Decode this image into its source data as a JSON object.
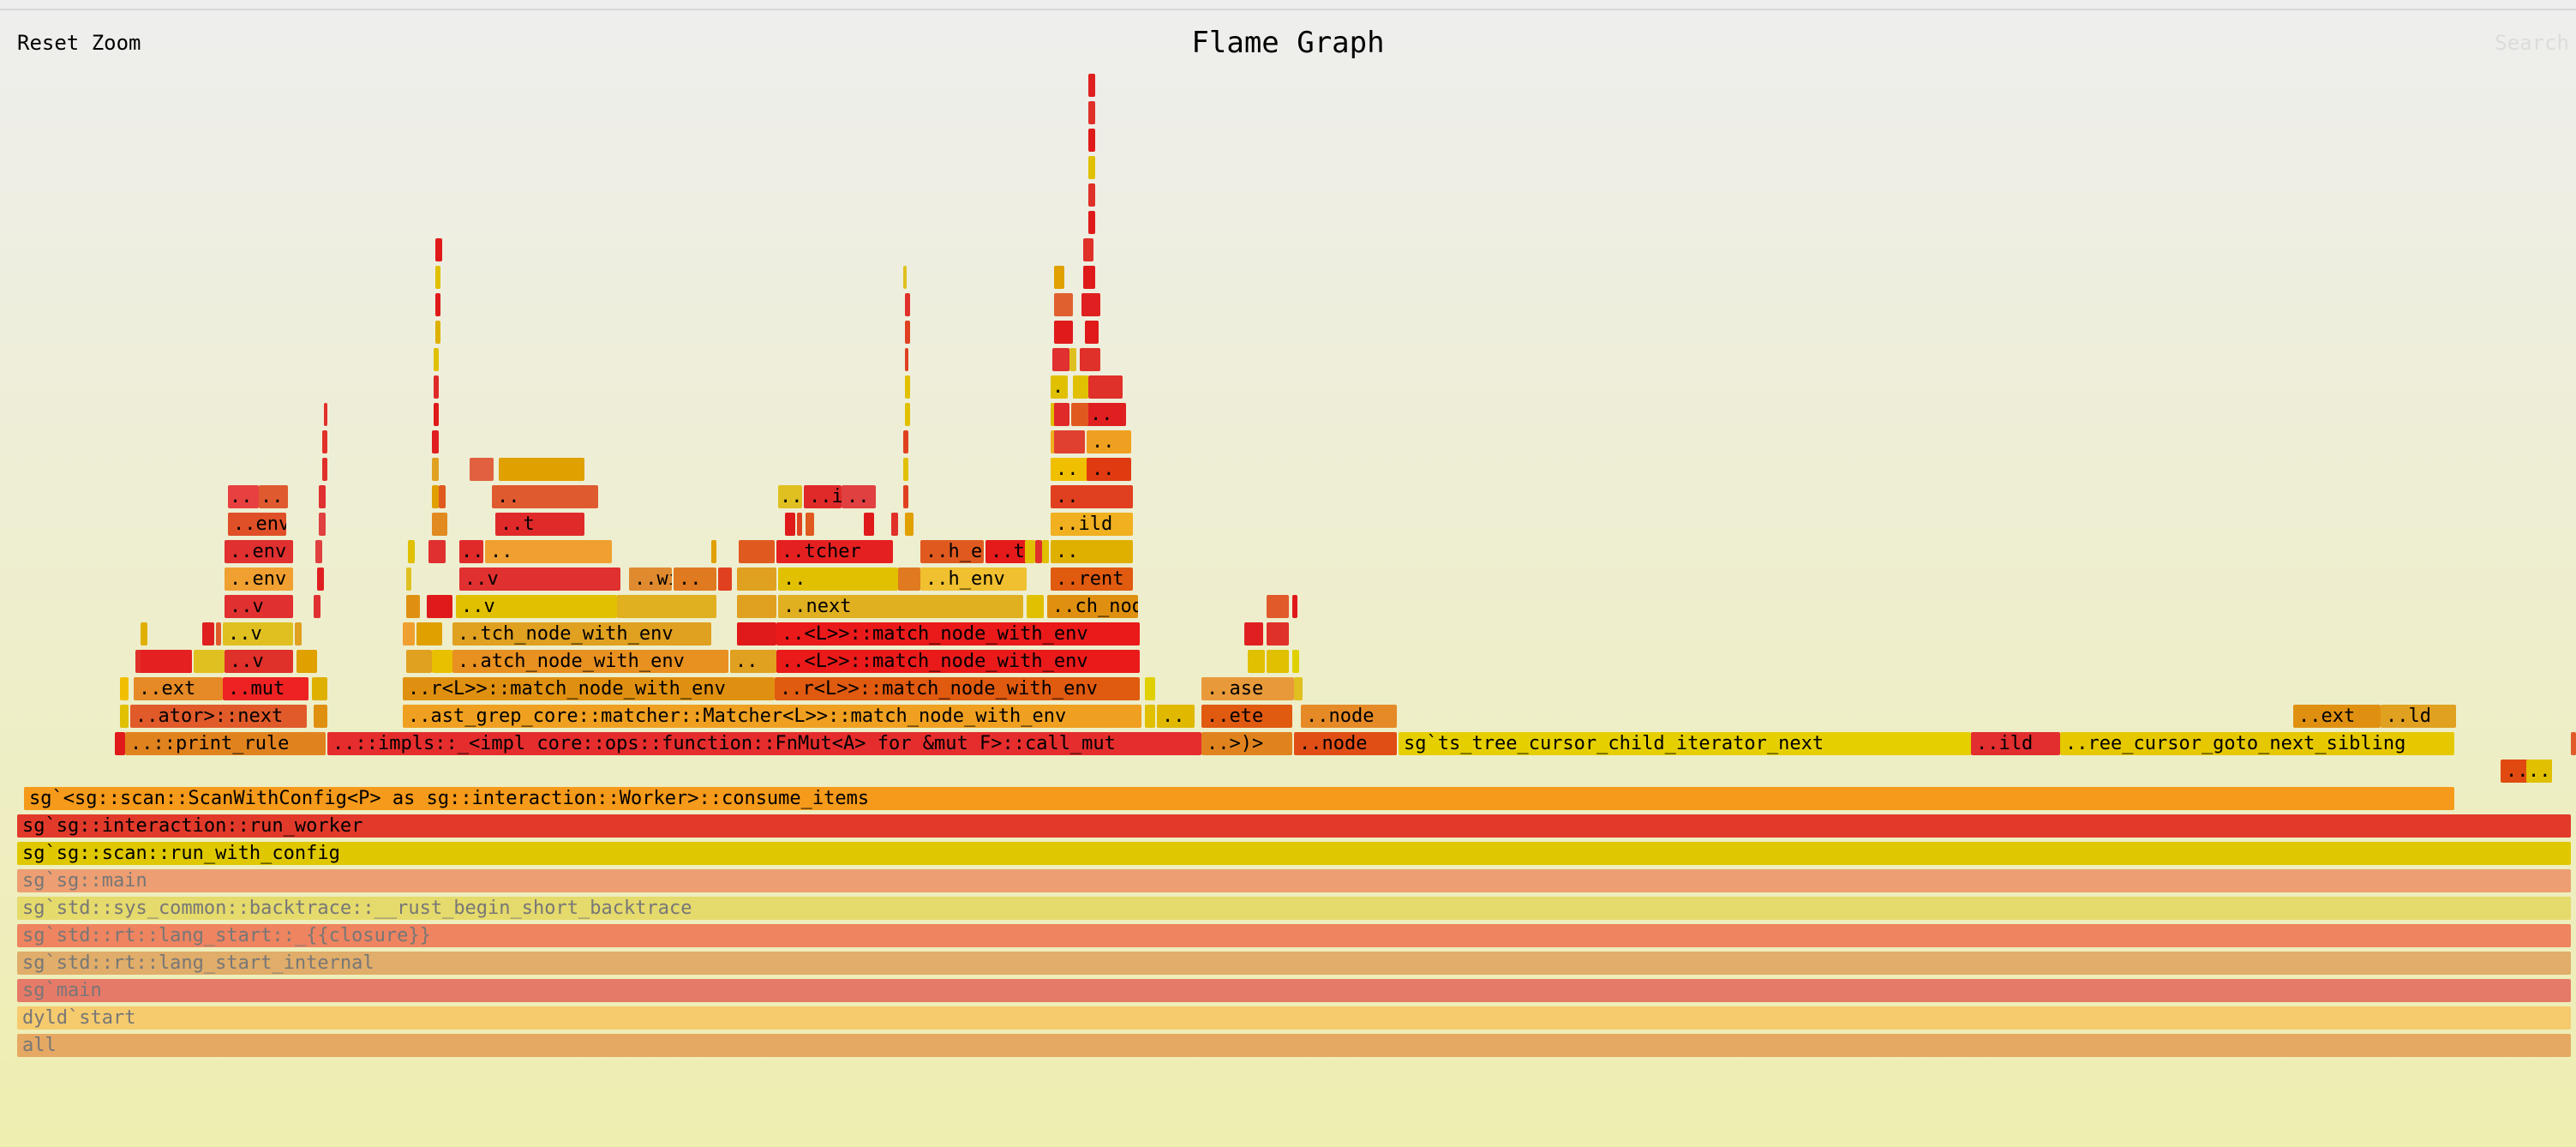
{
  "header": {
    "reset_zoom_label": "Reset Zoom",
    "title": "Flame Graph",
    "search_label": "Search"
  },
  "frames": [
    {
      "label": "all",
      "color": "#e6a964",
      "dim": true
    },
    {
      "label": "dyld`start",
      "color": "#f5cb6e",
      "dim": true
    },
    {
      "label": "sg`main",
      "color": "#e67a68",
      "dim": true
    },
    {
      "label": "sg`std::rt::lang_start_internal",
      "color": "#e0ad6a",
      "dim": true
    },
    {
      "label": "sg`std::rt::lang_start::_{{closure}}",
      "color": "#ee8460",
      "dim": true
    },
    {
      "label": "sg`std::sys_common::backtrace::__rust_begin_short_backtrace",
      "color": "#e5da6c",
      "dim": true
    },
    {
      "label": "sg`sg::main",
      "color": "#ed9e72",
      "dim": true
    },
    {
      "label": "sg`sg::scan::run_with_config",
      "color": "#e0c800"
    },
    {
      "label": "sg`sg::interaction::run_worker",
      "color": "#e23a2a"
    },
    {
      "label": "sg`<sg::scan::ScanWithConfig<P> as sg::interaction::Worker>::consume_items",
      "color": "#f59a1a"
    },
    {
      "label": "..",
      "color": "#e04a10"
    },
    {
      "label": "..",
      "color": "#e0c000"
    },
    {
      "label": "..::print_rule",
      "color": "#e0831f"
    },
    {
      "label": "..::impls::_<impl core::ops::function::FnMut<A> for &mut F>::call_mut",
      "color": "#e52d2d"
    },
    {
      "label": "..>)>",
      "color": "#e0831f"
    },
    {
      "label": "..node",
      "color": "#e04e16"
    },
    {
      "label": "sg`ts_tree_cursor_child_iterator_next",
      "color": "#e6cf00"
    },
    {
      "label": "..ild",
      "color": "#e22e2e"
    },
    {
      "label": "..ree_cursor_goto_next_sibling",
      "color": "#e6c800"
    },
    {
      "label": "..ator>::next",
      "color": "#e05a2a"
    },
    {
      "label": "..ast_grep_core::matcher::Matcher<L>>::match_node_with_env",
      "color": "#f0a020"
    },
    {
      "label": "..",
      "color": "#e0b800"
    },
    {
      "label": "..ete",
      "color": "#e05a10"
    },
    {
      "label": "..node",
      "color": "#e58a26"
    },
    {
      "label": "..ext",
      "color": "#e09010"
    },
    {
      "label": "..ld",
      "color": "#e0a020"
    },
    {
      "label": "..ext",
      "color": "#e58a26"
    },
    {
      "label": "..mut",
      "color": "#ee2222"
    },
    {
      "label": "..r<L>>::match_node_with_env",
      "color": "#e09010"
    },
    {
      "label": "..r<L>>::match_node_with_env",
      "color": "#e05a10"
    },
    {
      "label": "..ase",
      "color": "#e89a3a"
    },
    {
      "label": "..",
      "color": "#e0302a"
    },
    {
      "label": "..v",
      "color": "#e0302a"
    },
    {
      "label": "..atch_node_with_env",
      "color": "#e89020"
    },
    {
      "label": "..",
      "color": "#e0a020"
    },
    {
      "label": "..<L>>::match_node_with_env",
      "color": "#ea1a1a"
    },
    {
      "label": "..v",
      "color": "#e0c020"
    },
    {
      "label": "..tch_node_with_env",
      "color": "#e0a020"
    },
    {
      "label": "..<L>>::match_node_with_env",
      "color": "#ea1a1a"
    },
    {
      "label": "..v",
      "color": "#e03030"
    },
    {
      "label": "..v",
      "color": "#e0c000"
    },
    {
      "label": "..with_env",
      "color": "#e53020"
    },
    {
      "label": "..next",
      "color": "#e0b020"
    },
    {
      "label": "..ch_node_with_env",
      "color": "#e09010"
    },
    {
      "label": "..env",
      "color": "#f0a030"
    },
    {
      "label": "..v",
      "color": "#e03030"
    },
    {
      "label": "..with_env",
      "color": "#e08a30"
    },
    {
      "label": "..",
      "color": "#e07a20"
    },
    {
      "label": "..",
      "color": "#e0c000"
    },
    {
      "label": "..h_env",
      "color": "#f0c030"
    },
    {
      "label": "..rent",
      "color": "#e05a10"
    },
    {
      "label": "..env",
      "color": "#e03030"
    },
    {
      "label": "..v",
      "color": "#e02a2a"
    },
    {
      "label": "..",
      "color": "#f0a030"
    },
    {
      "label": "..tcher",
      "color": "#e52020"
    },
    {
      "label": "..h_env",
      "color": "#e05a20"
    },
    {
      "label": "..t",
      "color": "#e51a1a"
    },
    {
      "label": "..",
      "color": "#e0b000"
    },
    {
      "label": "..env",
      "color": "#e05028"
    },
    {
      "label": "..t",
      "color": "#e02a2a"
    },
    {
      "label": "..ild",
      "color": "#f0b020"
    },
    {
      "label": "..",
      "color": "#e84040"
    },
    {
      "label": "..",
      "color": "#e05a30"
    },
    {
      "label": "..",
      "color": "#e05a30"
    },
    {
      "label": "..",
      "color": "#e0c020"
    },
    {
      "label": "..ild",
      "color": "#e02a2a"
    },
    {
      "label": "..",
      "color": "#e04040"
    },
    {
      "label": "..",
      "color": "#e04020"
    },
    {
      "label": "..t",
      "color": "#e0a000"
    },
    {
      "label": "..",
      "color": "#f0c000"
    },
    {
      "label": "..",
      "color": "#e03a10"
    },
    {
      "label": "..",
      "color": "#f0b020"
    },
    {
      "label": "..",
      "color": "#f0a020"
    },
    {
      "label": "..",
      "color": "#e0c000"
    },
    {
      "label": "..",
      "color": "#e02020"
    },
    {
      "label": "..",
      "color": "#e0c000"
    }
  ]
}
